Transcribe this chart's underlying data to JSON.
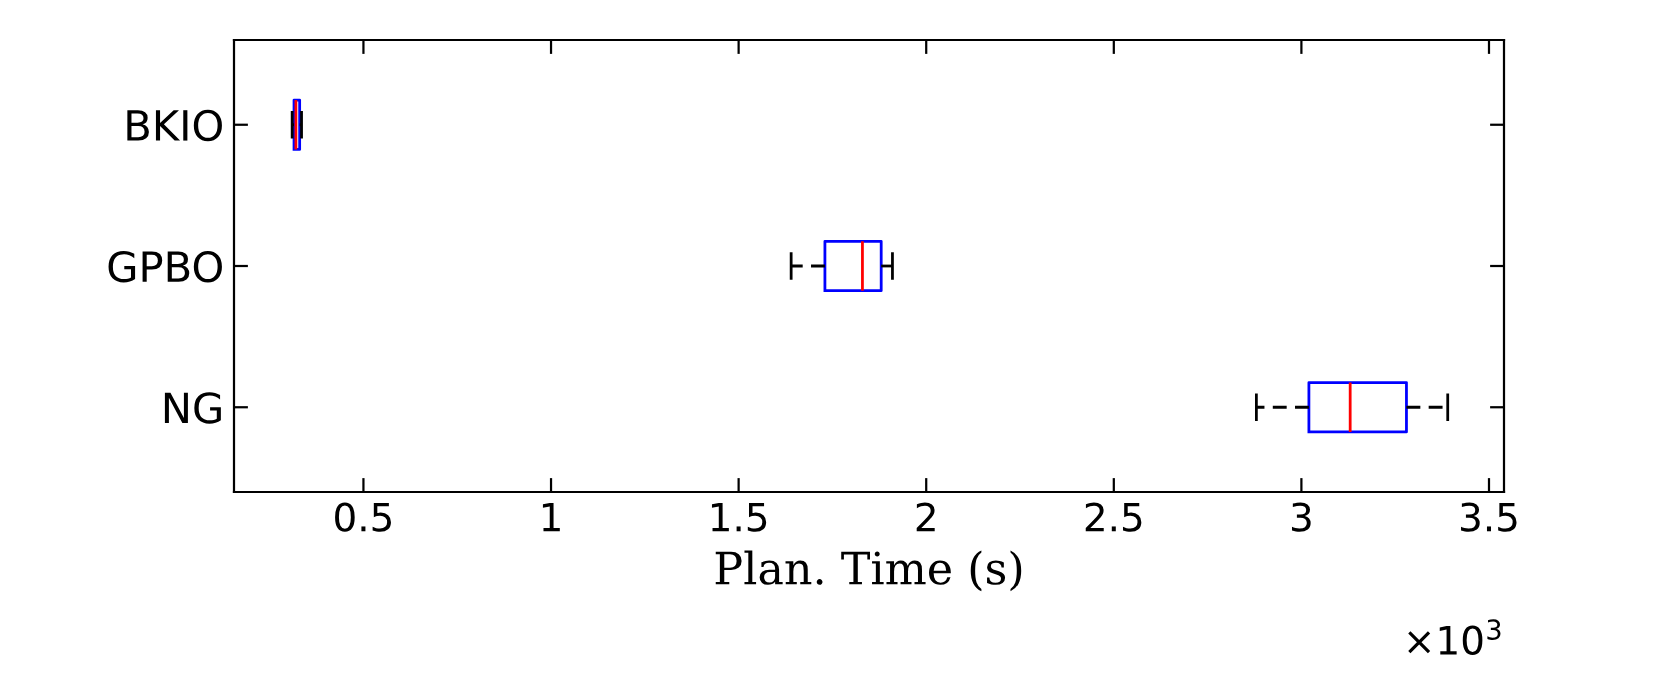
{
  "chart_data": {
    "type": "box",
    "orientation": "horizontal",
    "xlabel": "Plan. Time (s)",
    "categories": [
      "BKIO",
      "GPBO",
      "NG"
    ],
    "boxes": [
      {
        "low": 0.31,
        "q1": 0.315,
        "median": 0.32,
        "q3": 0.33,
        "high": 0.335
      },
      {
        "low": 1.64,
        "q1": 1.73,
        "median": 1.83,
        "q3": 1.88,
        "high": 1.91
      },
      {
        "low": 2.88,
        "q1": 3.02,
        "median": 3.13,
        "q3": 3.28,
        "high": 3.39
      }
    ],
    "color": "#0000ff",
    "xlim": [
      0.155,
      3.54
    ],
    "xticks": [
      0.5,
      1,
      1.5,
      2,
      2.5,
      3,
      3.5
    ],
    "annotations": [
      "×10$^{3}$"
    ],
    "grid": false,
    "legend": false
  }
}
